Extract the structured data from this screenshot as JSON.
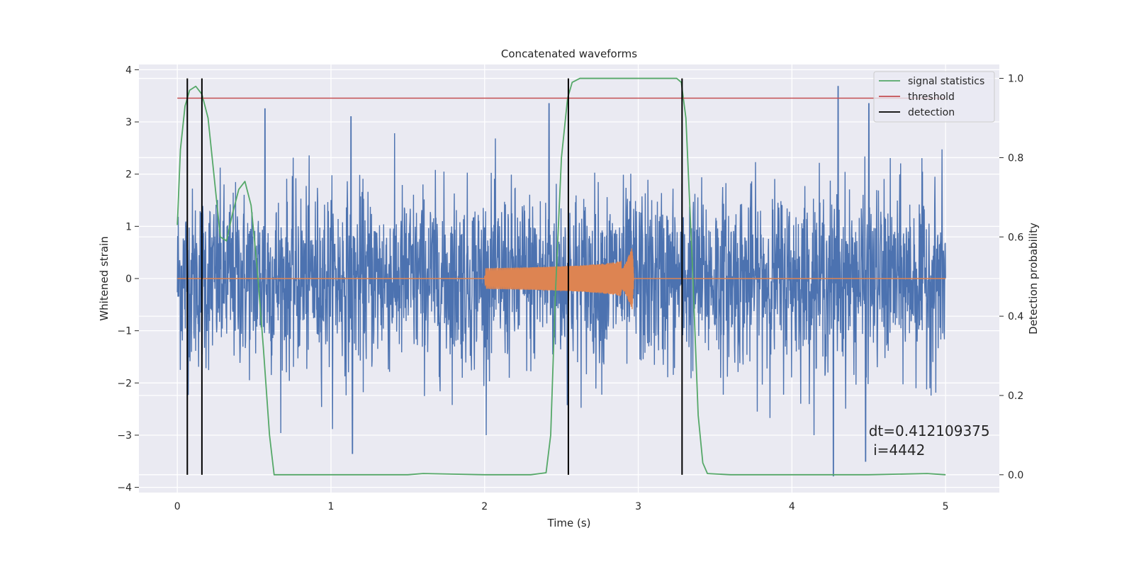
{
  "chart_data": {
    "type": "line",
    "title": "Concatenated waveforms",
    "xlabel": "Time (s)",
    "ylabel": "Whitened strain",
    "y2label": "Detection probability",
    "xlim": [
      -0.25,
      5.35
    ],
    "ylim": [
      -4.1,
      4.1
    ],
    "y2lim": [
      -0.045,
      1.035
    ],
    "xticks": [
      0,
      1,
      2,
      3,
      4,
      5
    ],
    "yticks": [
      4,
      3,
      2,
      1,
      0,
      -1,
      -2,
      -3,
      -4
    ],
    "y2ticks": [
      1.0,
      0.8,
      0.6,
      0.4,
      0.2,
      0.0
    ],
    "xtick_labels": [
      "0",
      "1",
      "2",
      "3",
      "4",
      "5"
    ],
    "ytick_labels": [
      "4",
      "3",
      "2",
      "1",
      "0",
      "−1",
      "−2",
      "−3",
      "−4"
    ],
    "y2tick_labels": [
      "1.0",
      "0.8",
      "0.6",
      "0.4",
      "0.2",
      "0.0"
    ],
    "grid": true,
    "legend_position": "top-right",
    "colors": {
      "noise": "#4c72b0",
      "waveform": "#dd8452",
      "signal_statistics": "#55a868",
      "threshold": "#c44e52",
      "detection": "#000000",
      "background": "#eaeaf2"
    },
    "series": [
      {
        "name": "",
        "axis": "left",
        "description_values": "whitened strain noise",
        "x_range": [
          0.0,
          5.0
        ],
        "typical_range": [
          -1.0,
          1.0
        ],
        "extremes": [
          {
            "x": 0.57,
            "y": 3.25
          },
          {
            "x": 1.13,
            "y": 3.1
          },
          {
            "x": 2.42,
            "y": 3.35
          },
          {
            "x": 4.3,
            "y": 3.68
          },
          {
            "x": 4.5,
            "y": 3.35
          },
          {
            "x": 4.27,
            "y": -3.78
          },
          {
            "x": 1.14,
            "y": -3.35
          },
          {
            "x": 4.48,
            "y": -3.5
          }
        ]
      },
      {
        "name": "",
        "axis": "left",
        "description_values": "injected chirp waveform",
        "x_range": [
          0.0,
          5.0
        ],
        "chirp_start": 2.0,
        "chirp_end": 2.97,
        "amplitude_start": 0.2,
        "amplitude_peak": 0.7
      },
      {
        "name": "signal statistics",
        "axis": "right",
        "x": [
          0.0,
          0.02,
          0.05,
          0.08,
          0.12,
          0.16,
          0.2,
          0.24,
          0.28,
          0.32,
          0.36,
          0.4,
          0.44,
          0.48,
          0.52,
          0.56,
          0.6,
          0.63,
          0.7,
          1.0,
          1.5,
          1.6,
          2.0,
          2.3,
          2.4,
          2.43,
          2.46,
          2.5,
          2.54,
          2.57,
          2.62,
          2.7,
          3.0,
          3.25,
          3.28,
          3.31,
          3.35,
          3.39,
          3.42,
          3.45,
          3.6,
          4.0,
          4.5,
          4.88,
          5.0
        ],
        "values": [
          0.63,
          0.82,
          0.93,
          0.97,
          0.98,
          0.96,
          0.9,
          0.75,
          0.6,
          0.59,
          0.66,
          0.72,
          0.74,
          0.68,
          0.52,
          0.32,
          0.1,
          0.0,
          0.0,
          0.0,
          0.0,
          0.003,
          0.0,
          0.0,
          0.005,
          0.1,
          0.45,
          0.8,
          0.95,
          0.99,
          1.0,
          1.0,
          1.0,
          1.0,
          0.99,
          0.9,
          0.55,
          0.15,
          0.03,
          0.003,
          0.0,
          0.0,
          0.0,
          0.003,
          0.0
        ]
      },
      {
        "name": "threshold",
        "axis": "right",
        "x": [
          0.0,
          5.0
        ],
        "values": [
          0.95,
          0.95
        ]
      },
      {
        "name": "detection",
        "axis": "right",
        "vertical_lines_x": [
          0.065,
          0.16,
          2.545,
          3.285
        ],
        "y_range": [
          0.0,
          1.0
        ]
      }
    ],
    "annotation": {
      "line1": "dt=0.412109375",
      "line2": " i=4442",
      "x": 4.5,
      "y": -3.0
    }
  }
}
